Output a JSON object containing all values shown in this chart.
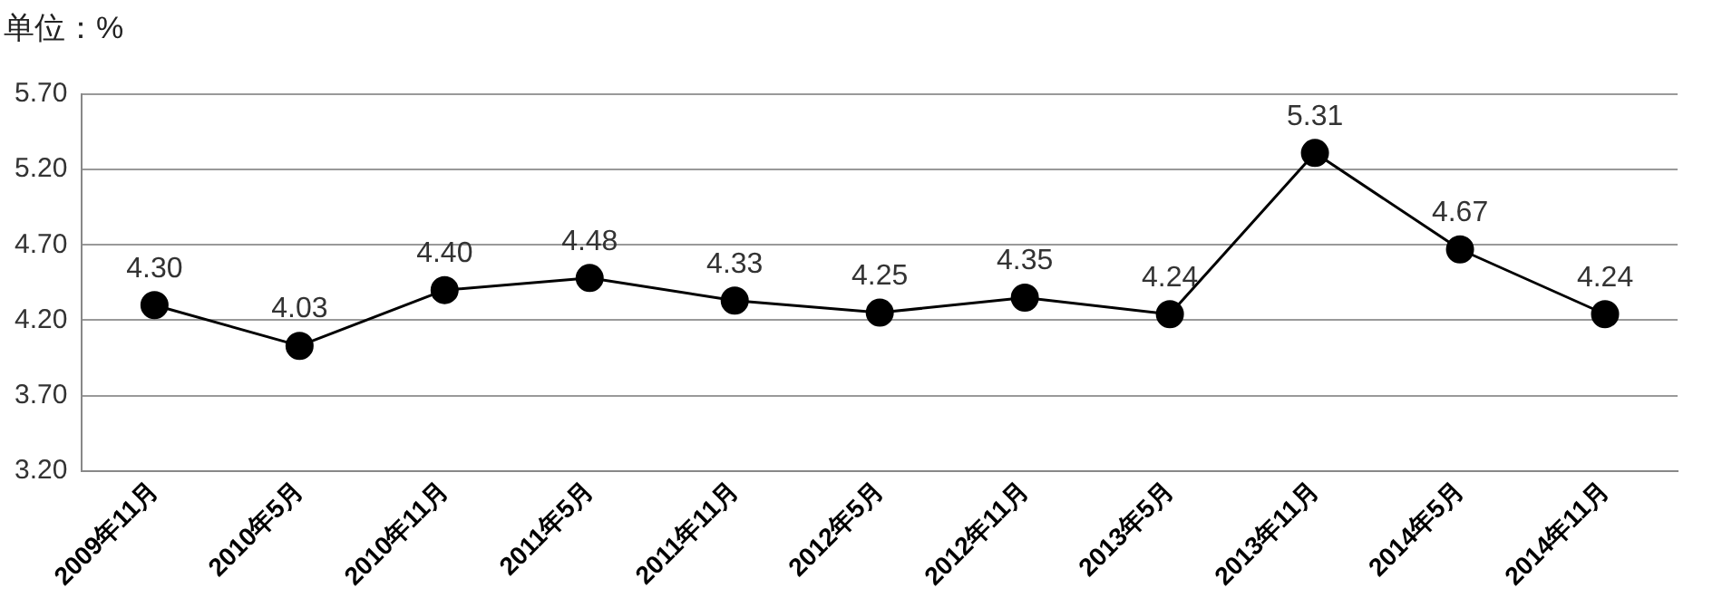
{
  "chart_data": {
    "type": "line",
    "ylabel": "单位：%",
    "categories": [
      "2009年11月",
      "2010年5月",
      "2010年11月",
      "2011年5月",
      "2011年11月",
      "2012年5月",
      "2012年11月",
      "2013年5月",
      "2013年11月",
      "2014年5月",
      "2014年11月"
    ],
    "values": [
      4.3,
      4.03,
      4.4,
      4.48,
      4.33,
      4.25,
      4.35,
      4.24,
      5.31,
      4.67,
      4.24
    ],
    "value_labels": [
      "4.30",
      "4.03",
      "4.40",
      "4.48",
      "4.33",
      "4.25",
      "4.35",
      "4.24",
      "5.31",
      "4.67",
      "4.24"
    ],
    "color": "#000000",
    "marker": "circle",
    "line_style": "solid",
    "grid": "y",
    "legend": false,
    "ylim": [
      3.2,
      5.7
    ],
    "yticks": [
      {
        "value": 3.2,
        "label": "3.20"
      },
      {
        "value": 3.7,
        "label": "3.70"
      },
      {
        "value": 4.2,
        "label": "4.20"
      },
      {
        "value": 4.7,
        "label": "4.70"
      },
      {
        "value": 5.2,
        "label": "5.20"
      },
      {
        "value": 5.7,
        "label": "5.70"
      }
    ]
  }
}
